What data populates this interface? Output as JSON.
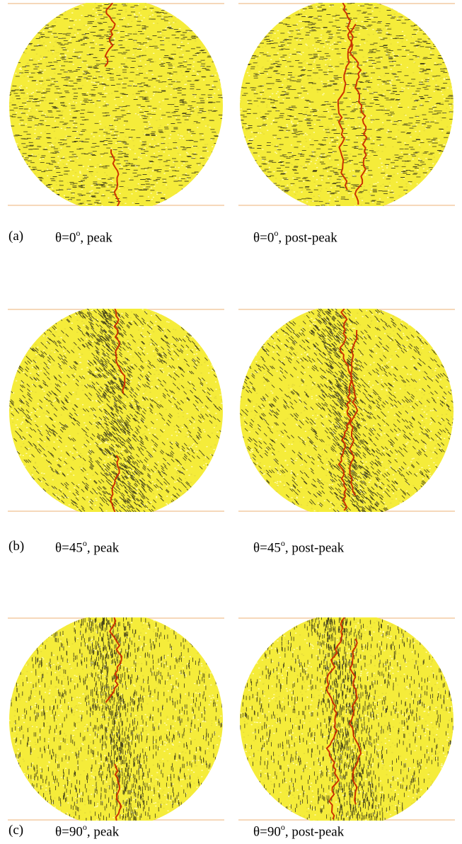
{
  "figure": {
    "rows": [
      {
        "tag": "(a)",
        "angle": "0",
        "left_caption": {
          "prefix": "θ=",
          "deg": "o",
          "suffix": ", peak"
        },
        "right_caption": {
          "prefix": "θ=",
          "deg": "o",
          "suffix": ", post-peak"
        },
        "left_panel": {
          "disk_color": "#f5ec3a",
          "crack_color": "#cc3300",
          "defect_color": "#111111"
        },
        "right_panel": {
          "disk_color": "#f5ec3a",
          "crack_color": "#cc3300",
          "defect_color": "#111111"
        }
      },
      {
        "tag": "(b)",
        "angle": "45",
        "left_caption": {
          "prefix": "θ=",
          "deg": "o",
          "suffix": ", peak"
        },
        "right_caption": {
          "prefix": "θ=",
          "deg": "o",
          "suffix": ", post-peak"
        },
        "left_panel": {
          "disk_color": "#f5ec3a",
          "crack_color": "#cc3300",
          "defect_color": "#111111"
        },
        "right_panel": {
          "disk_color": "#f5ec3a",
          "crack_color": "#cc3300",
          "defect_color": "#111111"
        }
      },
      {
        "tag": "(c)",
        "angle": "90",
        "left_caption": {
          "prefix": "θ=",
          "deg": "o",
          "suffix": ", peak"
        },
        "right_caption": {
          "prefix": "θ=",
          "deg": "o",
          "suffix": ", post-peak"
        },
        "left_panel": {
          "disk_color": "#f5ec3a",
          "crack_color": "#cc3300",
          "defect_color": "#111111"
        },
        "right_panel": {
          "disk_color": "#f5ec3a",
          "crack_color": "#cc3300",
          "defect_color": "#111111"
        }
      }
    ],
    "platen_color": "#f0c090"
  }
}
